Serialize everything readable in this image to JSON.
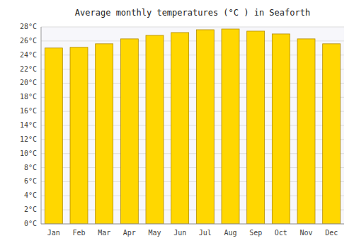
{
  "chart_data": {
    "type": "bar",
    "title": "Average monthly temperatures (°C ) in Seaforth",
    "categories": [
      "Jan",
      "Feb",
      "Mar",
      "Apr",
      "May",
      "Jun",
      "Jul",
      "Aug",
      "Sep",
      "Oct",
      "Nov",
      "Dec"
    ],
    "values": [
      25.0,
      25.1,
      25.6,
      26.3,
      26.8,
      27.2,
      27.6,
      27.7,
      27.4,
      27.0,
      26.3,
      25.6
    ],
    "color": "#FFD700",
    "ylim": [
      0,
      28
    ],
    "yticks": [
      {
        "value": 0,
        "label": "0°C"
      },
      {
        "value": 2,
        "label": "2°C"
      },
      {
        "value": 4,
        "label": "4°C"
      },
      {
        "value": 6,
        "label": "6°C"
      },
      {
        "value": 8,
        "label": "8°C"
      },
      {
        "value": 10,
        "label": "10°C"
      },
      {
        "value": 12,
        "label": "12°C"
      },
      {
        "value": 14,
        "label": "14°C"
      },
      {
        "value": 16,
        "label": "16°C"
      },
      {
        "value": 18,
        "label": "18°C"
      },
      {
        "value": 20,
        "label": "20°C"
      },
      {
        "value": 22,
        "label": "22°C"
      },
      {
        "value": 24,
        "label": "24°C"
      },
      {
        "value": 26,
        "label": "26°C"
      },
      {
        "value": 28,
        "label": "28°C"
      }
    ],
    "grid": true
  }
}
